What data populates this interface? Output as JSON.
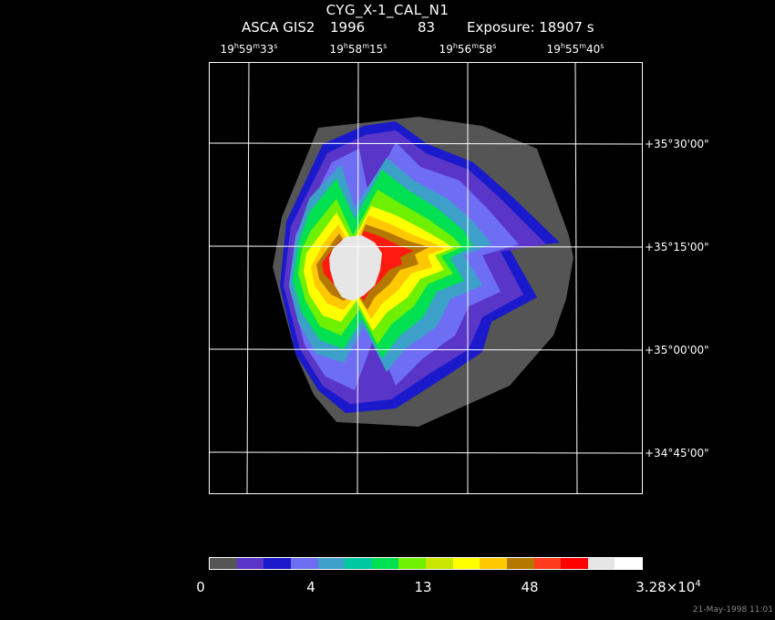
{
  "title": "CYG_X-1_CAL_N1",
  "subtitle": {
    "instrument": "ASCA GIS2",
    "year": "1996",
    "number": "83",
    "exposure": "Exposure: 18907 s"
  },
  "ra_labels": [
    {
      "h": "19",
      "m": "59",
      "s": "33"
    },
    {
      "h": "19",
      "m": "58",
      "s": "15"
    },
    {
      "h": "19",
      "m": "56",
      "s": "58"
    },
    {
      "h": "19",
      "m": "55",
      "s": "40"
    }
  ],
  "dec_labels": [
    "+35°30'00\"",
    "+35°15'00\"",
    "+35°00'00\"",
    "+34°45'00\""
  ],
  "colorbar": {
    "colors": [
      "#555555",
      "#5a36c8",
      "#1a1acc",
      "#6e6ef5",
      "#3ca0c8",
      "#00c8a0",
      "#00e050",
      "#6ef000",
      "#c8e600",
      "#ffff00",
      "#ffc800",
      "#b47800",
      "#ff3c1e",
      "#ff0000",
      "#e6e6e6",
      "#ffffff"
    ],
    "labels": {
      "l0": "0",
      "l1": "4",
      "l2": "13",
      "l3": "48",
      "l4_base": "3.28×10",
      "l4_exp": "4"
    }
  },
  "timestamp": "21-May-1998 11:01",
  "image_colors": {
    "gray": "#555555",
    "purple": "#5a36c8",
    "blue": "#1a1acc",
    "lightblue": "#6e6ef5",
    "teal": "#3ca0c8",
    "green": "#00e050",
    "lime": "#6ef000",
    "yellow": "#ffff00",
    "orange": "#ffc800",
    "brown": "#b47800",
    "red": "#ff1a10",
    "core": "#e6e6e6",
    "grid": "#ffffff"
  }
}
